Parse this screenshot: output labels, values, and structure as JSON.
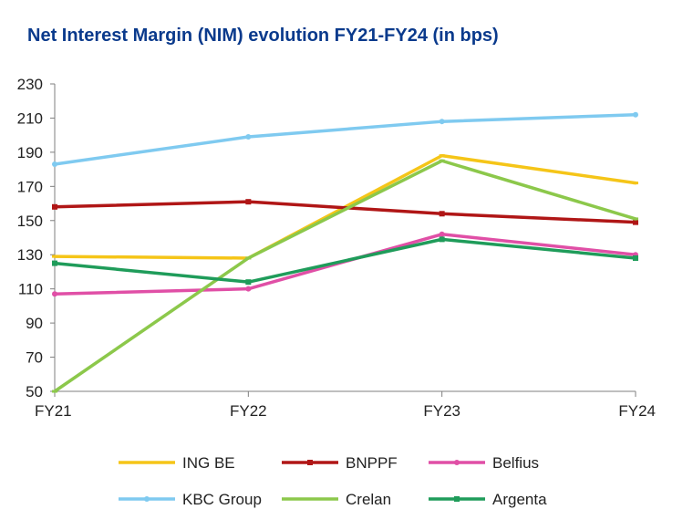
{
  "chart_data": {
    "type": "line",
    "title": "Net Interest Margin (NIM) evolution FY21-FY24 (in bps)",
    "xlabel": "",
    "ylabel": "",
    "categories": [
      "FY21",
      "FY22",
      "FY23",
      "FY24"
    ],
    "ylim": [
      50,
      230
    ],
    "yticks": [
      50,
      70,
      90,
      110,
      130,
      150,
      170,
      190,
      210,
      230
    ],
    "grid": false,
    "legend_position": "bottom",
    "series": [
      {
        "name": "ING BE",
        "values": [
          129,
          128,
          188,
          172
        ],
        "color": "#f5c518",
        "marker": "dash"
      },
      {
        "name": "BNPPF",
        "values": [
          158,
          161,
          154,
          149
        ],
        "color": "#b01616",
        "marker": "square"
      },
      {
        "name": "Belfius",
        "values": [
          107,
          110,
          142,
          130
        ],
        "color": "#e04fa6",
        "marker": "circle"
      },
      {
        "name": "KBC Group",
        "values": [
          183,
          199,
          208,
          212
        ],
        "color": "#7fcaf0",
        "marker": "circle"
      },
      {
        "name": "Crelan",
        "values": [
          50,
          128,
          185,
          151
        ],
        "color": "#8cc84b",
        "marker": "dash"
      },
      {
        "name": "Argenta",
        "values": [
          125,
          114,
          139,
          128
        ],
        "color": "#1f9c5a",
        "marker": "square"
      }
    ]
  }
}
